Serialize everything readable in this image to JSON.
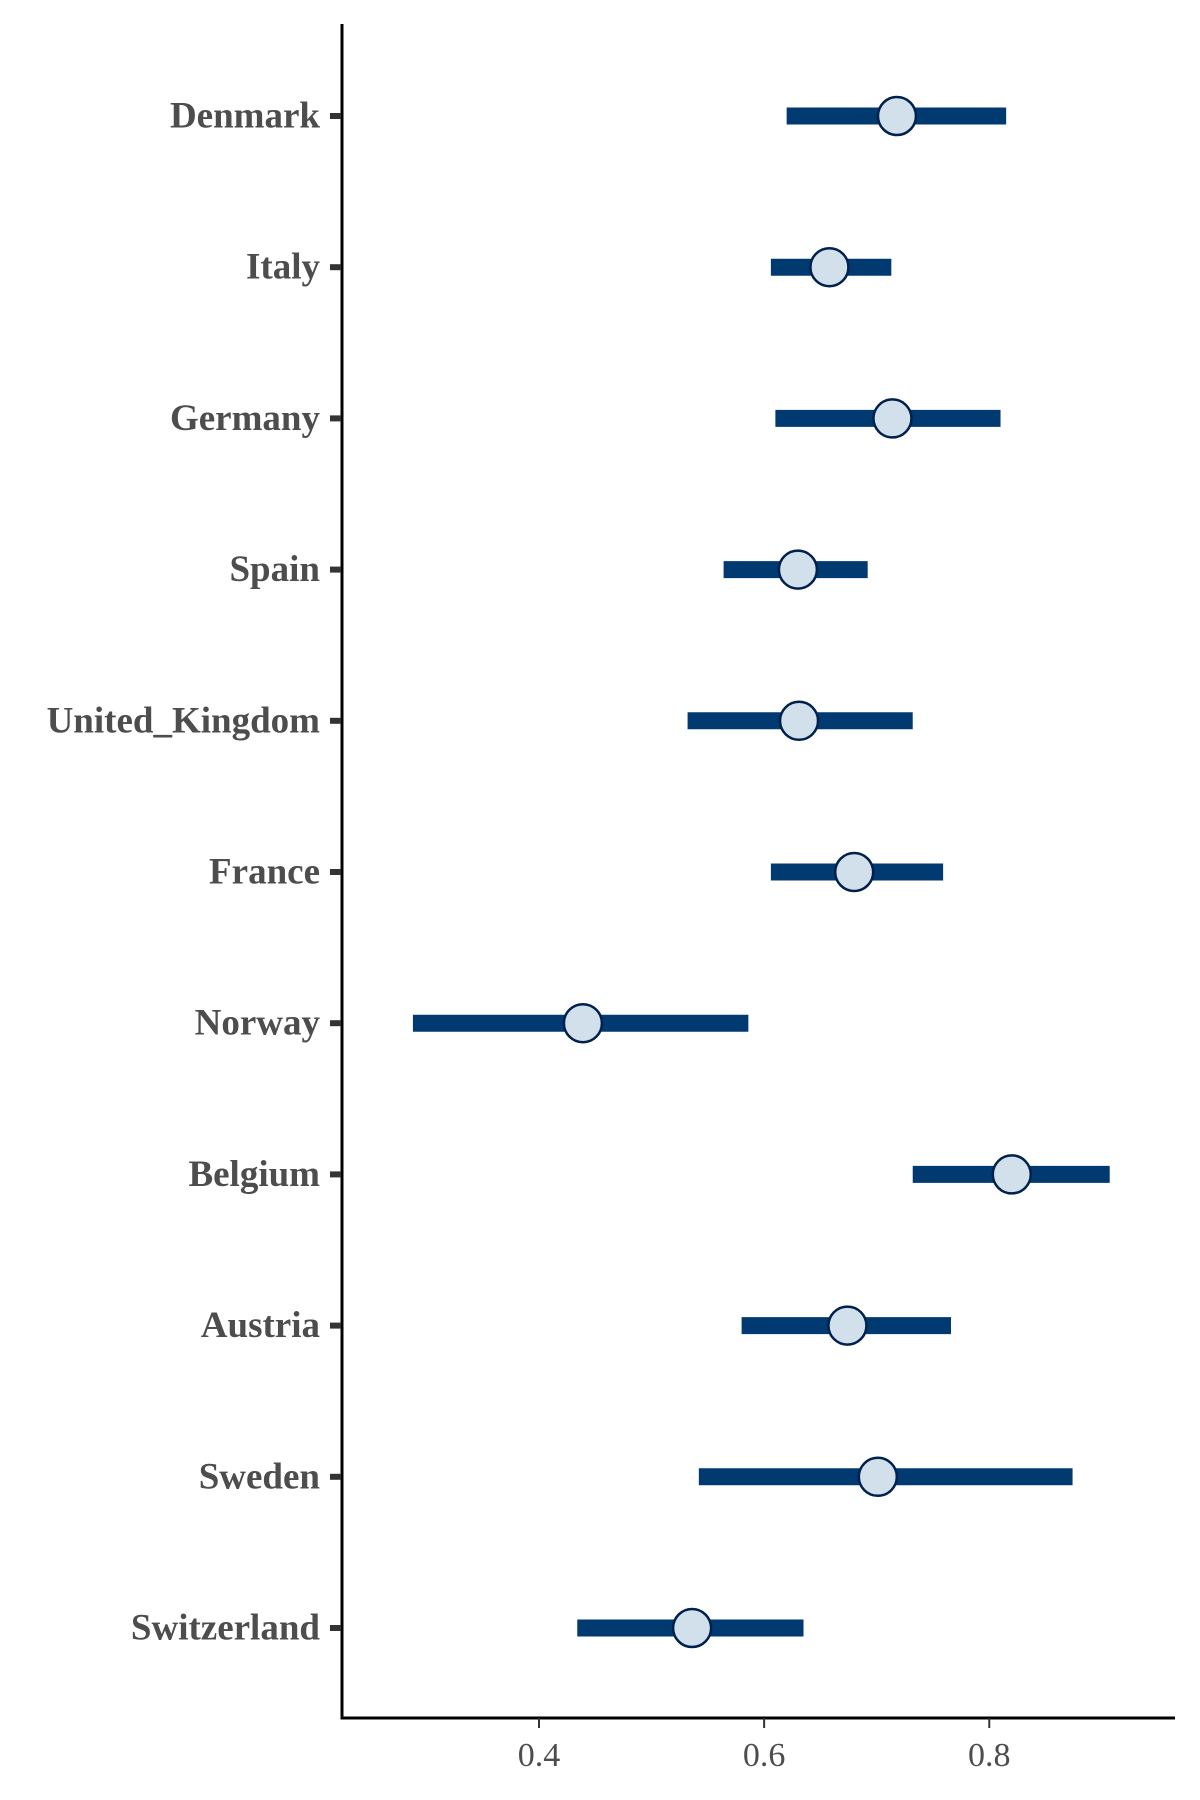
{
  "chart_data": {
    "type": "forest",
    "categories": [
      "Denmark",
      "Italy",
      "Germany",
      "Spain",
      "United_Kingdom",
      "France",
      "Norway",
      "Belgium",
      "Austria",
      "Sweden",
      "Switzerland"
    ],
    "estimates": [
      0.718,
      0.658,
      0.714,
      0.63,
      0.631,
      0.68,
      0.439,
      0.82,
      0.674,
      0.701,
      0.536
    ],
    "lower": [
      0.62,
      0.606,
      0.61,
      0.564,
      0.532,
      0.606,
      0.288,
      0.732,
      0.58,
      0.542,
      0.434
    ],
    "upper": [
      0.815,
      0.713,
      0.81,
      0.692,
      0.732,
      0.759,
      0.586,
      0.907,
      0.766,
      0.874,
      0.635
    ],
    "x_ticks": [
      0.4,
      0.6,
      0.8
    ],
    "x_tick_labels": [
      "0.4",
      "0.6",
      "0.8"
    ],
    "xlim": [
      0.225,
      0.965
    ],
    "xlabel": "",
    "ylabel": "",
    "title": "",
    "grid": false,
    "legend": "none",
    "colors": {
      "interval": "#003a70",
      "point_fill": "#d1e0ea",
      "point_stroke": "#00204d",
      "label": "#4d4d4d",
      "axis": "#000000"
    }
  }
}
